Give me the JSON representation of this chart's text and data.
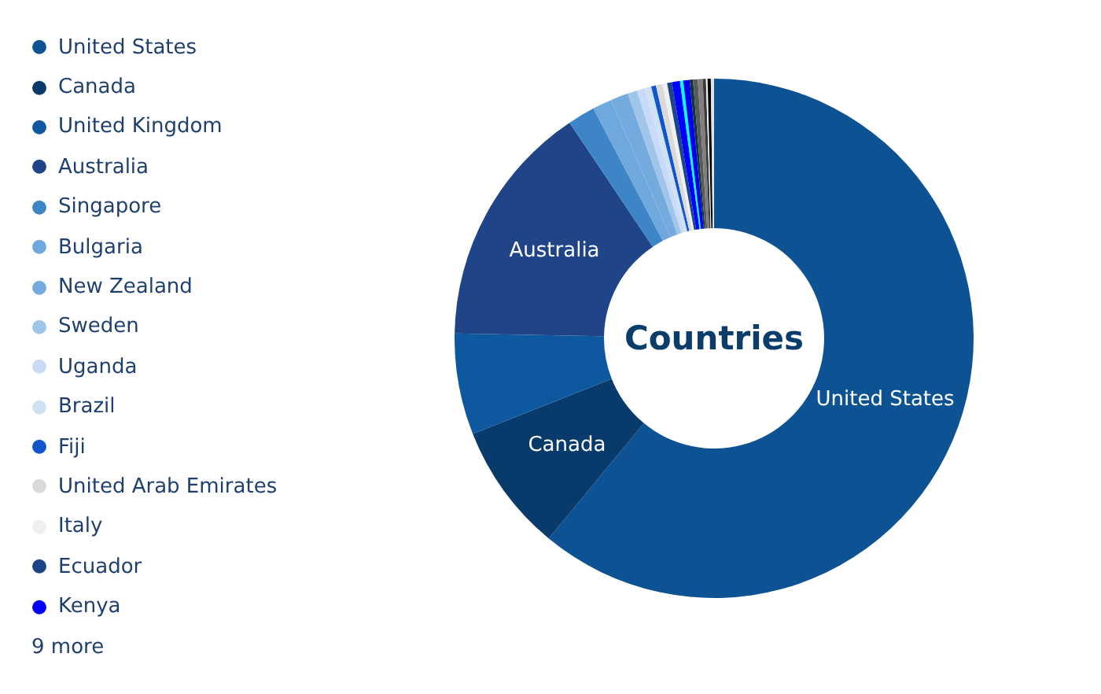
{
  "chart_data": {
    "type": "donut",
    "title": "Countries",
    "categories": [
      "United States",
      "Canada",
      "United Kingdom",
      "Australia",
      "Singapore",
      "Bulgaria",
      "New Zealand",
      "Sweden",
      "Uganda",
      "Brazil",
      "Fiji",
      "United Arab Emirates",
      "Italy",
      "Ecuador",
      "Kenya",
      null,
      null,
      null,
      null,
      null,
      null,
      null,
      null,
      null
    ],
    "values": [
      61.0,
      8.0,
      6.3,
      15.3,
      1.7,
      1.2,
      1.1,
      0.6,
      0.5,
      0.4,
      0.3,
      0.4,
      0.3,
      0.3,
      0.5,
      0.2,
      0.4,
      0.2,
      0.3,
      0.3,
      0.2,
      0.1,
      0.2,
      0.2
    ],
    "colors": [
      "#0d5293",
      "#083a6b",
      "#0e58a0",
      "#1f4488",
      "#3d85c6",
      "#6fa8dc",
      "#75aade",
      "#9fc5e8",
      "#c9daf8",
      "#cfe2f3",
      "#1155cc",
      "#d9d9d9",
      "#efefef",
      "#1c4587",
      "#0000ff",
      "#00ffff",
      "#0000ee",
      "#0c343d",
      "#595959",
      "#7f7f7f",
      "#3a3a3a",
      "#f3f3f3",
      "#000000",
      "#e4e4e4"
    ],
    "value_labels": [
      "United States",
      "Canada",
      null,
      "Australia",
      null,
      null,
      null,
      null,
      null,
      null,
      null,
      null,
      null,
      null,
      null,
      null,
      null,
      null,
      null,
      null,
      null,
      null,
      null,
      null
    ],
    "legend": "left",
    "annotations": [
      "9 more"
    ]
  }
}
